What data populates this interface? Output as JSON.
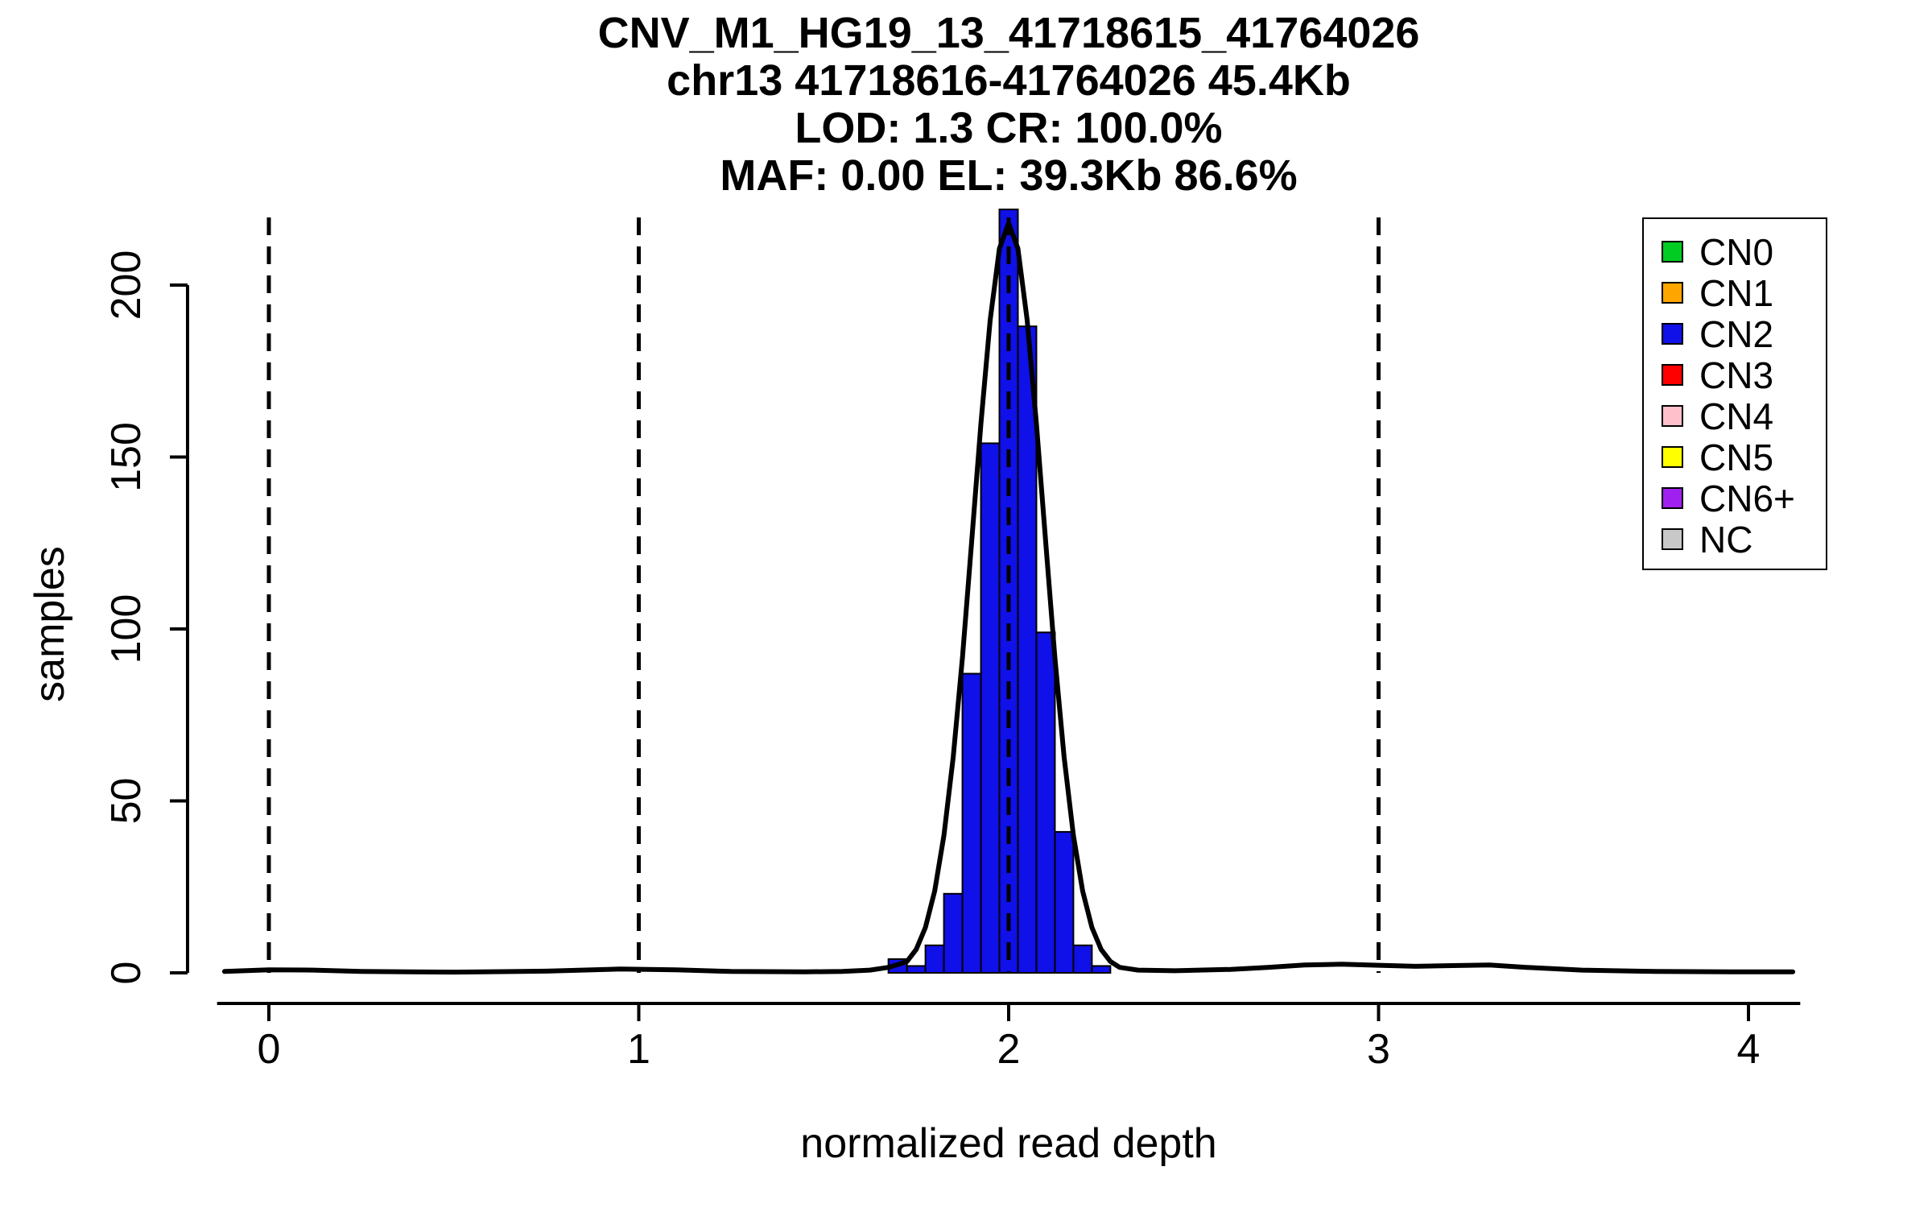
{
  "chart_data": {
    "type": "bar",
    "title": "CNV_M1_HG19_13_41718615_41764026",
    "title_lines": [
      "CNV_M1_HG19_13_41718615_41764026",
      "chr13 41718616-41764026 45.4Kb",
      "LOD: 1.3 CR: 100.0%",
      "MAF: 0.00 EL: 39.3Kb 86.6%"
    ],
    "xlabel": "normalized read depth",
    "ylabel": "samples",
    "xlim": [
      -0.14,
      4.14
    ],
    "ylim": [
      0,
      225
    ],
    "x_ticks": [
      0,
      1,
      2,
      3,
      4
    ],
    "y_ticks": [
      0,
      50,
      100,
      150,
      200
    ],
    "grid": false,
    "dashed_guides_x": [
      0,
      1,
      2,
      3
    ],
    "bin_width": 0.05,
    "bar_color": "#1010E8",
    "bar_edge_color": "#000000",
    "curve_color": "#000000",
    "bars": [
      {
        "x": 1.7,
        "count": 4
      },
      {
        "x": 1.75,
        "count": 2
      },
      {
        "x": 1.8,
        "count": 8
      },
      {
        "x": 1.85,
        "count": 23
      },
      {
        "x": 1.9,
        "count": 87
      },
      {
        "x": 1.95,
        "count": 154
      },
      {
        "x": 2.0,
        "count": 222
      },
      {
        "x": 2.05,
        "count": 188
      },
      {
        "x": 2.1,
        "count": 99
      },
      {
        "x": 2.15,
        "count": 41
      },
      {
        "x": 2.2,
        "count": 8
      },
      {
        "x": 2.25,
        "count": 2
      }
    ],
    "density_curve": [
      [
        -0.12,
        0.4
      ],
      [
        0.0,
        0.9
      ],
      [
        0.12,
        0.8
      ],
      [
        0.25,
        0.4
      ],
      [
        0.5,
        0.2
      ],
      [
        0.75,
        0.5
      ],
      [
        0.95,
        1.1
      ],
      [
        1.1,
        0.9
      ],
      [
        1.25,
        0.4
      ],
      [
        1.45,
        0.3
      ],
      [
        1.55,
        0.4
      ],
      [
        1.625,
        0.8
      ],
      [
        1.675,
        1.6
      ],
      [
        1.7,
        2.4
      ],
      [
        1.725,
        3.3
      ],
      [
        1.75,
        6.8
      ],
      [
        1.775,
        13.2
      ],
      [
        1.8,
        23.8
      ],
      [
        1.825,
        40.0
      ],
      [
        1.85,
        62.7
      ],
      [
        1.875,
        91.7
      ],
      [
        1.9,
        125.3
      ],
      [
        1.925,
        159.6
      ],
      [
        1.95,
        189.8
      ],
      [
        1.975,
        210.6
      ],
      [
        2.0,
        218.0
      ],
      [
        2.025,
        210.6
      ],
      [
        2.05,
        189.8
      ],
      [
        2.075,
        159.6
      ],
      [
        2.1,
        125.3
      ],
      [
        2.125,
        91.7
      ],
      [
        2.15,
        62.7
      ],
      [
        2.175,
        40.0
      ],
      [
        2.2,
        23.8
      ],
      [
        2.225,
        13.2
      ],
      [
        2.25,
        6.8
      ],
      [
        2.275,
        3.3
      ],
      [
        2.3,
        1.6
      ],
      [
        2.35,
        0.8
      ],
      [
        2.45,
        0.6
      ],
      [
        2.6,
        1.0
      ],
      [
        2.7,
        1.6
      ],
      [
        2.8,
        2.3
      ],
      [
        2.9,
        2.5
      ],
      [
        3.0,
        2.2
      ],
      [
        3.1,
        1.9
      ],
      [
        3.2,
        2.1
      ],
      [
        3.3,
        2.3
      ],
      [
        3.4,
        1.6
      ],
      [
        3.55,
        0.8
      ],
      [
        3.75,
        0.4
      ],
      [
        3.95,
        0.3
      ],
      [
        4.12,
        0.3
      ]
    ],
    "legend": {
      "position": "top-right",
      "items": [
        {
          "label": "CN0",
          "color": "#00CC22"
        },
        {
          "label": "CN1",
          "color": "#FFA500"
        },
        {
          "label": "CN2",
          "color": "#1010E8"
        },
        {
          "label": "CN3",
          "color": "#FF0000"
        },
        {
          "label": "CN4",
          "color": "#FFC0CB"
        },
        {
          "label": "CN5",
          "color": "#FFFF00"
        },
        {
          "label": "CN6+",
          "color": "#A020F0"
        },
        {
          "label": "NC",
          "color": "#C8C8C8"
        }
      ]
    }
  }
}
